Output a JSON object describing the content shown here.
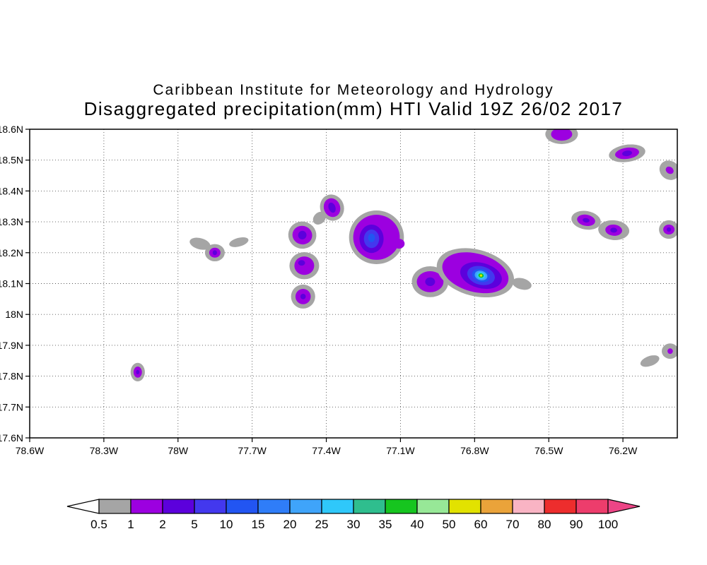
{
  "header": {
    "line1": "Caribbean Institute for Meteorology and Hydrology",
    "line2": "Disaggregated precipitation(mm) HTI Valid 19Z 26/02 2017"
  },
  "chart_data": {
    "type": "heatmap",
    "title": "Disaggregated precipitation(mm) HTI Valid 19Z 26/02 2017",
    "institution": "Caribbean Institute for Meteorology and Hydrology",
    "xlabel": "",
    "ylabel": "",
    "grid": "dotted",
    "units": "mm",
    "xlim": [
      -78.6,
      -75.98
    ],
    "ylim": [
      17.6,
      18.6
    ],
    "x_ticks": [
      -78.6,
      -78.3,
      -78.0,
      -77.7,
      -77.4,
      -77.1,
      -76.8,
      -76.5,
      -76.2
    ],
    "x_tick_labels": [
      "78.6W",
      "78.3W",
      "78W",
      "77.7W",
      "77.4W",
      "77.1W",
      "76.8W",
      "76.5W",
      "76.2W"
    ],
    "y_ticks": [
      18.6,
      18.5,
      18.4,
      18.3,
      18.2,
      18.1,
      18.0,
      17.9,
      17.8,
      17.7,
      17.6
    ],
    "y_tick_labels": [
      "18.6N",
      "18.5N",
      "18.4N",
      "18.3N",
      "18.2N",
      "18.1N",
      "18N",
      "17.9N",
      "17.8N",
      "17.7N",
      "17.6N"
    ],
    "levels": [
      0.5,
      1,
      2,
      5,
      10,
      15,
      20,
      25,
      30,
      35,
      40,
      50,
      60,
      70,
      80,
      90,
      100
    ],
    "palette": [
      "#a5a5a5",
      "#9c00e0",
      "#5c00dc",
      "#4338ee",
      "#2255f2",
      "#2f7df8",
      "#3fa4fa",
      "#2fc8fa",
      "#2fbe8e",
      "#16c51f",
      "#97e897",
      "#e2e200",
      "#eaa33a",
      "#f9b4c4",
      "#ed2d2d",
      "#ed3d6c"
    ],
    "arrow_low_color": "#ffffff",
    "arrow_high_color": "#ed4586",
    "colorbar_labels": [
      "0.5",
      "1",
      "2",
      "5",
      "10",
      "15",
      "20",
      "25",
      "30",
      "35",
      "40",
      "50",
      "60",
      "70",
      "80",
      "90",
      "100"
    ],
    "max_cell": {
      "lon": -76.775,
      "lat": 18.125,
      "value_range": "50-60"
    },
    "blobs": [
      {
        "lon": -78.163,
        "lat": 17.813,
        "rot": 0,
        "rings": [
          {
            "v": 0.5,
            "rx": 0.029,
            "ry": 0.03
          },
          {
            "v": 1,
            "rx": 0.017,
            "ry": 0.018
          },
          {
            "v": 2,
            "rx": 0.007,
            "ry": 0.007
          }
        ]
      },
      {
        "lon": -77.911,
        "lat": 18.229,
        "rot": 15,
        "rings": [
          {
            "v": 0.5,
            "rx": 0.043,
            "ry": 0.018
          }
        ]
      },
      {
        "lon": -77.851,
        "lat": 18.2,
        "rot": 0,
        "rings": [
          {
            "v": 0.5,
            "rx": 0.04,
            "ry": 0.028
          },
          {
            "v": 1,
            "rx": 0.023,
            "ry": 0.016
          },
          {
            "v": 2,
            "rx": 0.009,
            "ry": 0.008
          }
        ]
      },
      {
        "lon": -77.754,
        "lat": 18.234,
        "rot": -15,
        "rings": [
          {
            "v": 0.5,
            "rx": 0.04,
            "ry": 0.014
          }
        ]
      },
      {
        "lon": -77.497,
        "lat": 18.257,
        "rot": 15,
        "rings": [
          {
            "v": 0.5,
            "rx": 0.057,
            "ry": 0.044
          },
          {
            "v": 1,
            "rx": 0.04,
            "ry": 0.03
          },
          {
            "v": 2,
            "rx": 0.017,
            "ry": 0.014
          }
        ]
      },
      {
        "lon": -77.428,
        "lat": 18.312,
        "rot": -45,
        "rings": [
          {
            "v": 0.5,
            "rx": 0.029,
            "ry": 0.018
          }
        ]
      },
      {
        "lon": -77.377,
        "lat": 18.346,
        "rot": -20,
        "rings": [
          {
            "v": 0.5,
            "rx": 0.048,
            "ry": 0.043
          },
          {
            "v": 1,
            "rx": 0.033,
            "ry": 0.031
          },
          {
            "v": 2,
            "rx": 0.014,
            "ry": 0.017
          }
        ]
      },
      {
        "lon": -77.489,
        "lat": 18.158,
        "rot": 0,
        "rings": [
          {
            "v": 0.5,
            "rx": 0.06,
            "ry": 0.044
          },
          {
            "v": 1,
            "rx": 0.04,
            "ry": 0.03
          },
          {
            "v": 2,
            "rx": 0.014,
            "ry": 0.009,
            "dx": -0.011,
            "dy": 0.009
          }
        ]
      },
      {
        "lon": -77.494,
        "lat": 18.058,
        "rot": 0,
        "rings": [
          {
            "v": 0.5,
            "rx": 0.049,
            "ry": 0.039
          },
          {
            "v": 1,
            "rx": 0.031,
            "ry": 0.025
          },
          {
            "v": 2,
            "rx": 0.011,
            "ry": 0.009
          }
        ]
      },
      {
        "lon": -77.197,
        "lat": 18.25,
        "rot": 0,
        "rings": [
          {
            "v": 0.5,
            "rx": 0.111,
            "ry": 0.087
          },
          {
            "v": 1,
            "rx": 0.094,
            "ry": 0.073
          },
          {
            "v": 2,
            "rx": 0.049,
            "ry": 0.046,
            "dx": -0.02,
            "dy": -0.005
          },
          {
            "v": 5,
            "rx": 0.031,
            "ry": 0.03,
            "dx": -0.02,
            "dy": -0.005
          },
          {
            "v": 10,
            "rx": 0.014,
            "ry": 0.014,
            "dx": -0.02,
            "dy": -0.002
          }
        ]
      },
      {
        "lon": -77.106,
        "lat": 18.229,
        "rot": 0,
        "rings": [
          {
            "v": 1,
            "rx": 0.023,
            "ry": 0.016
          }
        ]
      },
      {
        "lon": -76.98,
        "lat": 18.106,
        "rot": 0,
        "rings": [
          {
            "v": 0.5,
            "rx": 0.074,
            "ry": 0.05
          },
          {
            "v": 1,
            "rx": 0.054,
            "ry": 0.034
          },
          {
            "v": 2,
            "rx": 0.02,
            "ry": 0.014
          }
        ]
      },
      {
        "lon": -76.797,
        "lat": 18.135,
        "rot": 15,
        "rings": [
          {
            "v": 0.5,
            "rx": 0.16,
            "ry": 0.075
          },
          {
            "v": 1,
            "rx": 0.137,
            "ry": 0.062
          },
          {
            "v": 2,
            "rx": 0.086,
            "ry": 0.041,
            "dx": 0.023,
            "dy": -0.009
          },
          {
            "v": 5,
            "rx": 0.057,
            "ry": 0.03,
            "dx": 0.023,
            "dy": -0.009
          },
          {
            "v": 10,
            "rx": 0.037,
            "ry": 0.021,
            "dx": 0.023,
            "dy": -0.009
          },
          {
            "v": 20,
            "rx": 0.026,
            "ry": 0.015,
            "dx": 0.023,
            "dy": -0.009
          },
          {
            "v": 25,
            "rx": 0.018,
            "ry": 0.011,
            "dx": 0.023,
            "dy": -0.009
          },
          {
            "v": 35,
            "rx": 0.011,
            "ry": 0.007,
            "dx": 0.023,
            "dy": -0.009
          },
          {
            "v": 50,
            "rx": 0.005,
            "ry": 0.004,
            "dx": 0.023,
            "dy": -0.009
          }
        ]
      },
      {
        "lon": -76.609,
        "lat": 18.099,
        "rot": 15,
        "rings": [
          {
            "v": 0.5,
            "rx": 0.04,
            "ry": 0.018
          }
        ]
      },
      {
        "lon": -76.448,
        "lat": 18.584,
        "rot": 0,
        "rings": [
          {
            "v": 0.5,
            "rx": 0.066,
            "ry": 0.032
          },
          {
            "v": 1,
            "rx": 0.043,
            "ry": 0.021
          }
        ]
      },
      {
        "lon": -76.183,
        "lat": 18.522,
        "rot": -8,
        "rings": [
          {
            "v": 0.5,
            "rx": 0.074,
            "ry": 0.028
          },
          {
            "v": 1,
            "rx": 0.049,
            "ry": 0.018
          },
          {
            "v": 2,
            "rx": 0.02,
            "ry": 0.009
          }
        ]
      },
      {
        "lon": -76.011,
        "lat": 18.467,
        "rot": 35,
        "rings": [
          {
            "v": 0.5,
            "rx": 0.043,
            "ry": 0.03
          },
          {
            "v": 1,
            "rx": 0.017,
            "ry": 0.011
          }
        ]
      },
      {
        "lon": -76.349,
        "lat": 18.305,
        "rot": 10,
        "rings": [
          {
            "v": 0.5,
            "rx": 0.06,
            "ry": 0.03
          },
          {
            "v": 1,
            "rx": 0.037,
            "ry": 0.018
          },
          {
            "v": 2,
            "rx": 0.014,
            "ry": 0.007
          }
        ]
      },
      {
        "lon": -76.237,
        "lat": 18.273,
        "rot": 5,
        "rings": [
          {
            "v": 0.5,
            "rx": 0.063,
            "ry": 0.032
          },
          {
            "v": 1,
            "rx": 0.034,
            "ry": 0.018
          },
          {
            "v": 2,
            "rx": 0.014,
            "ry": 0.008
          }
        ]
      },
      {
        "lon": -76.014,
        "lat": 18.275,
        "rot": 0,
        "rings": [
          {
            "v": 0.5,
            "rx": 0.04,
            "ry": 0.03
          },
          {
            "v": 1,
            "rx": 0.023,
            "ry": 0.016
          },
          {
            "v": 2,
            "rx": 0.009,
            "ry": 0.007
          }
        ]
      },
      {
        "lon": -76.091,
        "lat": 17.849,
        "rot": -20,
        "rings": [
          {
            "v": 0.5,
            "rx": 0.04,
            "ry": 0.016
          }
        ]
      },
      {
        "lon": -76.009,
        "lat": 17.881,
        "rot": 0,
        "rings": [
          {
            "v": 0.5,
            "rx": 0.034,
            "ry": 0.025
          },
          {
            "v": 1,
            "rx": 0.011,
            "ry": 0.009
          }
        ]
      }
    ]
  }
}
